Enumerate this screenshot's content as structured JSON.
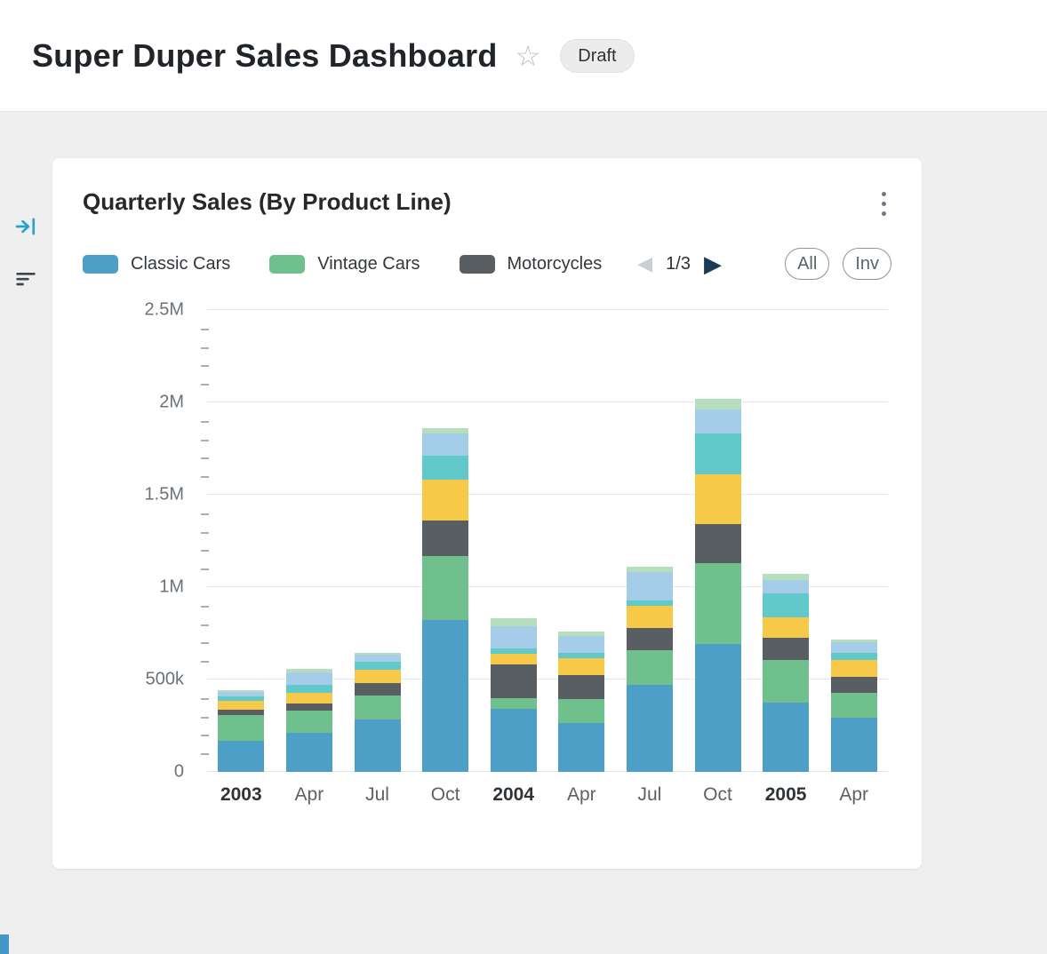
{
  "header": {
    "title": "Super Duper Sales Dashboard",
    "status": "Draft"
  },
  "icons": {
    "star": "☆",
    "prev": "◀",
    "next": "▶"
  },
  "card": {
    "title": "Quarterly Sales (By Product Line)",
    "legend": {
      "items": [
        {
          "label": "Classic Cars",
          "color": "#4d9fc7"
        },
        {
          "label": "Vintage Cars",
          "color": "#6fc08d"
        },
        {
          "label": "Motorcycles",
          "color": "#595e62"
        }
      ],
      "page": "1/3"
    },
    "buttons": {
      "all": "All",
      "inv": "Inv"
    }
  },
  "chart_data": {
    "type": "bar",
    "stacked": true,
    "title": "Quarterly Sales (By Product Line)",
    "xlabel": "",
    "ylabel": "",
    "legend_position": "top",
    "grid": true,
    "categories": [
      "2003",
      "Apr",
      "Jul",
      "Oct",
      "2004",
      "Apr",
      "Jul",
      "Oct",
      "2005",
      "Apr"
    ],
    "bold_categories": [
      "2003",
      "2004",
      "2005"
    ],
    "ylim_k": [
      0,
      2500
    ],
    "minor_tick_k": 100,
    "y_ticks": [
      {
        "v": 0,
        "label": "0"
      },
      {
        "v": 500,
        "label": "500k"
      },
      {
        "v": 1000,
        "label": "1M"
      },
      {
        "v": 1500,
        "label": "1.5M"
      },
      {
        "v": 2000,
        "label": "2M"
      },
      {
        "v": 2500,
        "label": "2.5M"
      }
    ],
    "series": [
      {
        "name": "Classic Cars",
        "color": "#4d9fc7",
        "values_k": [
          170,
          210,
          285,
          820,
          340,
          265,
          470,
          690,
          375,
          295
        ]
      },
      {
        "name": "Vintage Cars",
        "color": "#6fc08d",
        "values_k": [
          140,
          120,
          130,
          350,
          60,
          130,
          190,
          440,
          230,
          135
        ]
      },
      {
        "name": "Motorcycles",
        "color": "#595e62",
        "values_k": [
          25,
          40,
          65,
          190,
          180,
          130,
          120,
          210,
          120,
          85
        ]
      },
      {
        "name": "",
        "color": "#f6c948",
        "values_k": [
          50,
          60,
          75,
          220,
          60,
          90,
          120,
          270,
          110,
          90
        ]
      },
      {
        "name": "",
        "color": "#62c9cb",
        "values_k": [
          25,
          40,
          40,
          130,
          30,
          30,
          30,
          220,
          130,
          40
        ]
      },
      {
        "name": "",
        "color": "#a5cde9",
        "values_k": [
          25,
          70,
          40,
          120,
          120,
          90,
          150,
          130,
          75,
          55
        ]
      },
      {
        "name": "",
        "color": "#b5deba",
        "values_k": [
          10,
          20,
          10,
          30,
          40,
          25,
          30,
          60,
          30,
          15
        ]
      }
    ]
  }
}
